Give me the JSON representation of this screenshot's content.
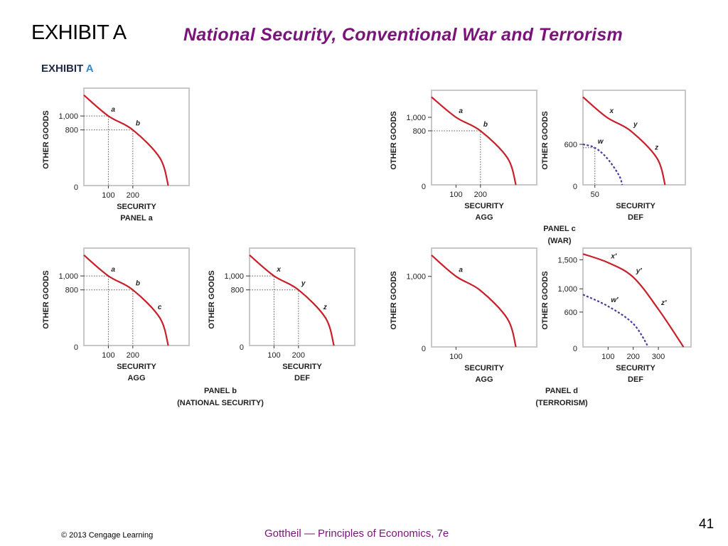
{
  "slide": {
    "label": "EXHIBIT A",
    "title": "National Security, Conventional War and Terrorism",
    "exhibit_head_main": "EXHIBIT ",
    "exhibit_head_accent": "A",
    "copyright": "© 2013 Cengage Learning",
    "source": "Gottheil — Principles of Economics, 7e",
    "page_number": "41"
  },
  "colors": {
    "curve": "#c8202a",
    "dashed_curve": "#4a3aa0",
    "frame": "#c8c8c8",
    "title": "#7a137a",
    "text": "#1f1f1f"
  },
  "panel_captions": {
    "a": [
      "PANEL a"
    ],
    "b": [
      "PANEL b",
      "(NATIONAL SECURITY)"
    ],
    "c": [
      "PANEL c",
      "(WAR)"
    ],
    "d": [
      "PANEL d",
      "(TERRORISM)"
    ]
  },
  "chart_data": [
    {
      "id": "panel-a",
      "type": "line",
      "xlabel": [
        "SECURITY",
        "PANEL a"
      ],
      "ylabel": "OTHER GOODS",
      "xticks": [
        "100",
        "200"
      ],
      "yticks": [
        "1,000",
        "800"
      ],
      "origin": "0",
      "xlim": [
        0,
        430
      ],
      "ylim": [
        0,
        1400
      ],
      "series": [
        {
          "style": "solid",
          "points": [
            [
              0,
              1300
            ],
            [
              100,
              1000
            ],
            [
              200,
              800
            ],
            [
              310,
              400
            ],
            [
              345,
              0
            ]
          ],
          "labels": [
            {
              "text": "a",
              "x": 100,
              "y": 1000
            },
            {
              "text": "b",
              "x": 200,
              "y": 800
            }
          ]
        }
      ],
      "guides": [
        [
          100,
          1000
        ],
        [
          200,
          800
        ]
      ]
    },
    {
      "id": "panel-b-agg",
      "type": "line",
      "xlabel": [
        "SECURITY",
        "AGG"
      ],
      "ylabel": "OTHER GOODS",
      "xticks": [
        "100",
        "200"
      ],
      "yticks": [
        "1,000",
        "800"
      ],
      "origin": "0",
      "xlim": [
        0,
        430
      ],
      "ylim": [
        0,
        1400
      ],
      "series": [
        {
          "style": "solid",
          "points": [
            [
              0,
              1300
            ],
            [
              100,
              1000
            ],
            [
              200,
              800
            ],
            [
              310,
              400
            ],
            [
              345,
              0
            ]
          ],
          "labels": [
            {
              "text": "a",
              "x": 100,
              "y": 1000
            },
            {
              "text": "b",
              "x": 200,
              "y": 800
            },
            {
              "text": "c",
              "x": 290,
              "y": 460
            }
          ]
        }
      ],
      "guides": [
        [
          100,
          1000
        ],
        [
          200,
          800
        ]
      ]
    },
    {
      "id": "panel-b-def",
      "type": "line",
      "xlabel": [
        "SECURITY",
        "DEF"
      ],
      "ylabel": "OTHER GOODS",
      "xticks": [
        "100",
        "200"
      ],
      "yticks": [
        "1,000",
        "800"
      ],
      "origin": "0",
      "xlim": [
        0,
        430
      ],
      "ylim": [
        0,
        1400
      ],
      "series": [
        {
          "style": "solid",
          "points": [
            [
              0,
              1300
            ],
            [
              100,
              1000
            ],
            [
              200,
              800
            ],
            [
              310,
              400
            ],
            [
              345,
              0
            ]
          ],
          "labels": [
            {
              "text": "x",
              "x": 100,
              "y": 1000
            },
            {
              "text": "y",
              "x": 200,
              "y": 800
            },
            {
              "text": "z",
              "x": 290,
              "y": 460
            }
          ]
        }
      ],
      "guides": [
        [
          100,
          1000
        ],
        [
          200,
          800
        ]
      ]
    },
    {
      "id": "panel-c-agg",
      "type": "line",
      "xlabel": [
        "SECURITY",
        "AGG"
      ],
      "ylabel": "OTHER GOODS",
      "xticks": [
        "100",
        "200"
      ],
      "yticks": [
        "1,000",
        "800"
      ],
      "origin": "0",
      "xlim": [
        0,
        430
      ],
      "ylim": [
        0,
        1400
      ],
      "series": [
        {
          "style": "solid",
          "points": [
            [
              0,
              1300
            ],
            [
              100,
              1000
            ],
            [
              200,
              800
            ],
            [
              310,
              400
            ],
            [
              345,
              0
            ]
          ],
          "labels": [
            {
              "text": "a",
              "x": 100,
              "y": 1000
            },
            {
              "text": "b",
              "x": 200,
              "y": 800
            }
          ]
        }
      ],
      "guides": [
        [
          200,
          800
        ]
      ]
    },
    {
      "id": "panel-c-def",
      "type": "line",
      "xlabel": [
        "SECURITY",
        "DEF"
      ],
      "ylabel": "OTHER GOODS",
      "xticks": [
        "50"
      ],
      "yticks": [
        "600"
      ],
      "origin": "0",
      "xlim": [
        0,
        430
      ],
      "ylim": [
        0,
        1400
      ],
      "series": [
        {
          "style": "solid",
          "points": [
            [
              0,
              1300
            ],
            [
              100,
              1000
            ],
            [
              200,
              800
            ],
            [
              310,
              400
            ],
            [
              345,
              0
            ]
          ],
          "labels": [
            {
              "text": "x",
              "x": 100,
              "y": 1000
            },
            {
              "text": "y",
              "x": 200,
              "y": 800
            },
            {
              "text": "z",
              "x": 290,
              "y": 460
            }
          ]
        },
        {
          "style": "dashed",
          "points": [
            [
              0,
              600
            ],
            [
              50,
              550
            ],
            [
              100,
              400
            ],
            [
              150,
              150
            ],
            [
              165,
              0
            ]
          ],
          "labels": [
            {
              "text": "w",
              "x": 50,
              "y": 550
            }
          ]
        }
      ],
      "guides": [
        [
          50,
          550
        ]
      ]
    },
    {
      "id": "panel-d-agg",
      "type": "line",
      "xlabel": [
        "SECURITY",
        "AGG"
      ],
      "ylabel": "OTHER GOODS",
      "xticks": [
        "100"
      ],
      "yticks": [
        "1,000"
      ],
      "origin": "0",
      "xlim": [
        0,
        430
      ],
      "ylim": [
        0,
        1400
      ],
      "series": [
        {
          "style": "solid",
          "points": [
            [
              0,
              1300
            ],
            [
              100,
              1000
            ],
            [
              200,
              800
            ],
            [
              310,
              400
            ],
            [
              345,
              0
            ]
          ],
          "labels": [
            {
              "text": "a",
              "x": 100,
              "y": 1000
            }
          ]
        }
      ],
      "guides": []
    },
    {
      "id": "panel-d-def",
      "type": "line",
      "xlabel": [
        "SECURITY",
        "DEF"
      ],
      "ylabel": "OTHER GOODS",
      "xticks": [
        "100",
        "200",
        "300"
      ],
      "yticks": [
        "1,500",
        "1,000",
        "600"
      ],
      "origin": "0",
      "xlim": [
        0,
        430
      ],
      "ylim": [
        0,
        1700
      ],
      "series": [
        {
          "style": "solid",
          "points": [
            [
              0,
              1600
            ],
            [
              100,
              1450
            ],
            [
              200,
              1200
            ],
            [
              300,
              650
            ],
            [
              400,
              0
            ]
          ],
          "labels": [
            {
              "text": "x′",
              "x": 100,
              "y": 1450
            },
            {
              "text": "y′",
              "x": 200,
              "y": 1200
            },
            {
              "text": "z′",
              "x": 300,
              "y": 650
            }
          ]
        },
        {
          "style": "dashed",
          "points": [
            [
              0,
              900
            ],
            [
              100,
              700
            ],
            [
              200,
              400
            ],
            [
              260,
              0
            ]
          ],
          "labels": [
            {
              "text": "w′",
              "x": 100,
              "y": 700
            }
          ]
        }
      ],
      "guides": []
    }
  ]
}
